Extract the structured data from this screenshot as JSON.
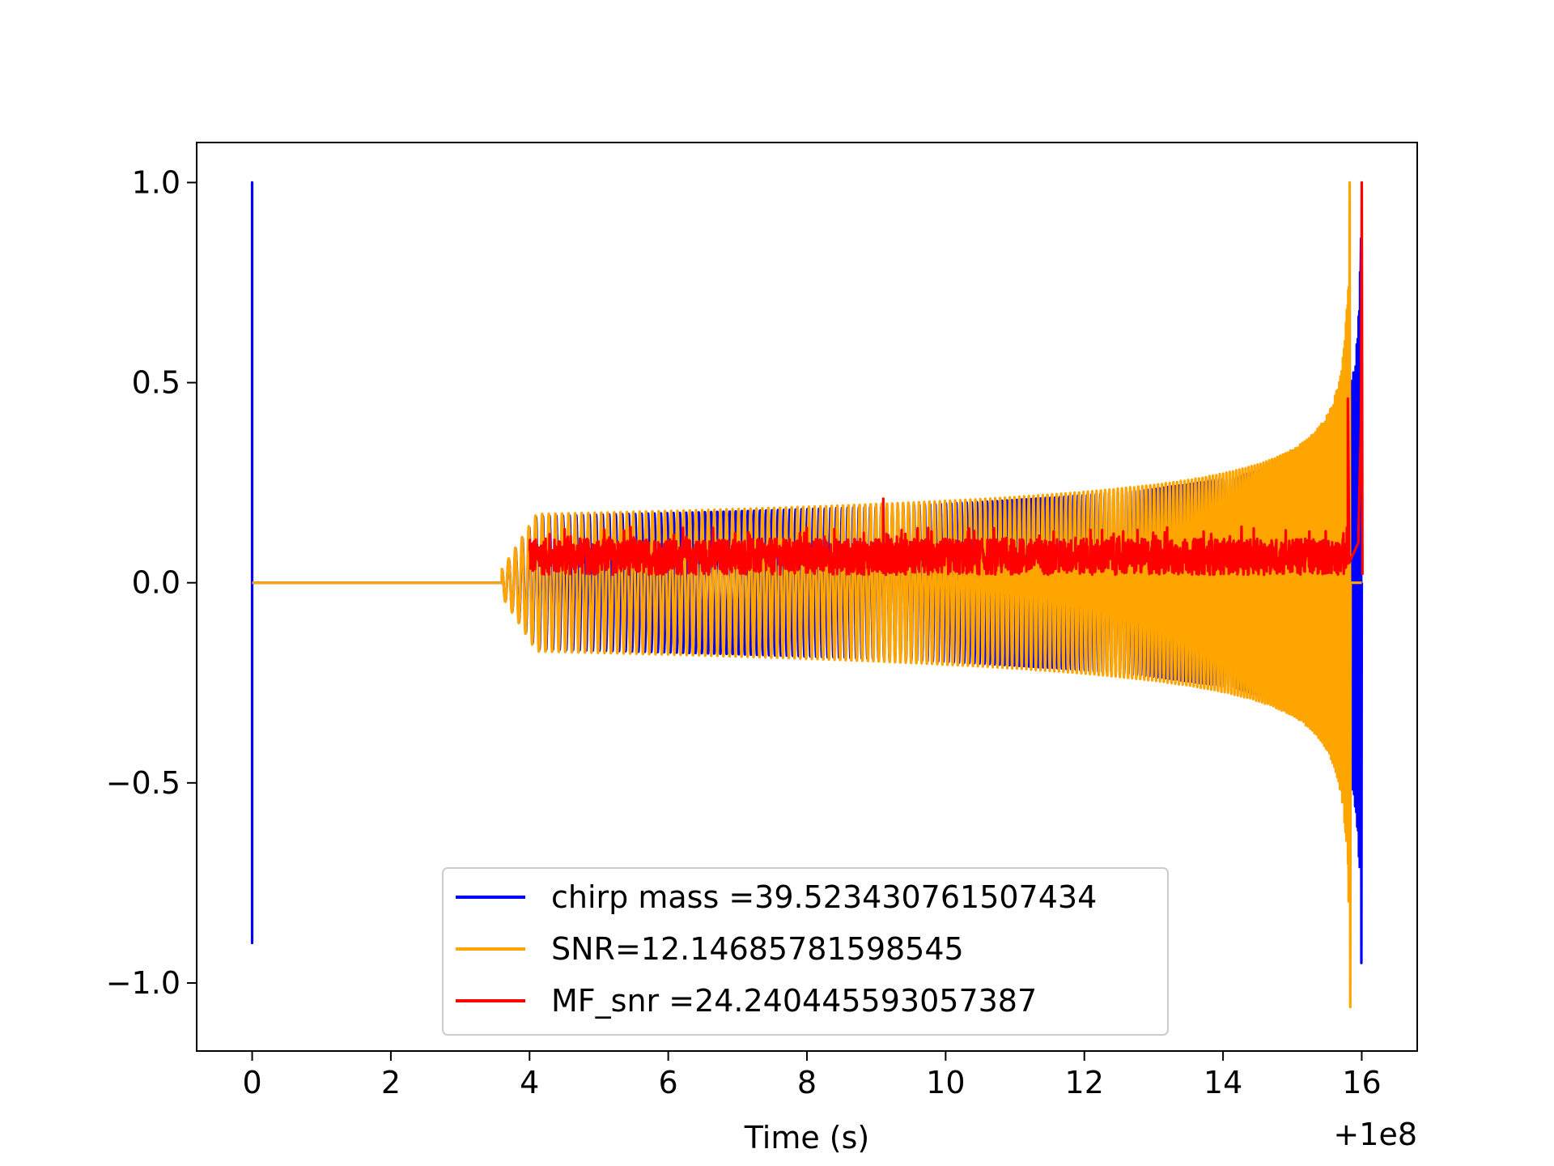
{
  "chart_data": {
    "type": "line",
    "title": "",
    "xlabel": "Time (s)",
    "ylabel": "",
    "x_offset_label": "+1e8",
    "xlim": [
      -0.8,
      16.8
    ],
    "ylim": [
      -1.17,
      1.1
    ],
    "xticks": [
      0,
      2,
      4,
      6,
      8,
      10,
      12,
      14,
      16
    ],
    "xtick_labels": [
      "0",
      "2",
      "4",
      "6",
      "8",
      "10",
      "12",
      "14",
      "16"
    ],
    "yticks": [
      1.0,
      0.5,
      0.0,
      -0.5,
      -1.0
    ],
    "ytick_labels": [
      "1.0",
      "0.5",
      "0.0",
      "−0.5",
      "−1.0"
    ],
    "grid": false,
    "legend_position": "lower-center",
    "series": [
      {
        "name": "chirp mass =39.523430761507434",
        "color": "#0000ff",
        "description": "chirp waveform: spike at t=0 (1.0 to -0.9), flat zero until ~3.6 s, oscillation amplitude ~0.17 growing to merger near 16 s (max ~0.95, min ~-0.95)",
        "x": [
          0,
          0,
          0,
          0.05,
          3.6,
          4.0,
          6.0,
          8.0,
          10.0,
          12.0,
          14.0,
          15.0,
          15.6,
          15.9,
          16.0,
          16.0
        ],
        "y": [
          1.0,
          -0.9,
          0.0,
          0.0,
          0.0,
          0.15,
          0.17,
          0.18,
          0.2,
          0.24,
          0.3,
          0.38,
          0.55,
          0.85,
          -0.95,
          0.0
        ]
      },
      {
        "name": "SNR=12.14685781598545",
        "color": "#ffa500",
        "description": "chirp waveform (SNR) overlay: amplitude ~0.17 at 4 s growing to 1.0 / -1.06 near 15.8 s",
        "x": [
          0,
          3.6,
          4.0,
          6.0,
          8.0,
          10.0,
          12.0,
          14.0,
          15.0,
          15.5,
          15.8,
          15.85,
          16.0
        ],
        "y": [
          0.0,
          0.0,
          0.16,
          0.18,
          0.19,
          0.2,
          0.23,
          0.29,
          0.37,
          0.5,
          1.0,
          -1.06,
          0.0
        ]
      },
      {
        "name": "MF_snr =24.240445593057387",
        "color": "#ff0000",
        "description": "matched-filter SNR: noisy trace 0.0–0.12 from 4 s to 16 s with peak 1.0 at ~16 s",
        "x": [
          4.0,
          6.0,
          8.0,
          9.1,
          10.0,
          12.0,
          14.0,
          15.8,
          16.0
        ],
        "y": [
          0.05,
          0.06,
          0.05,
          0.21,
          0.05,
          0.05,
          0.05,
          0.46,
          1.0
        ]
      }
    ]
  }
}
